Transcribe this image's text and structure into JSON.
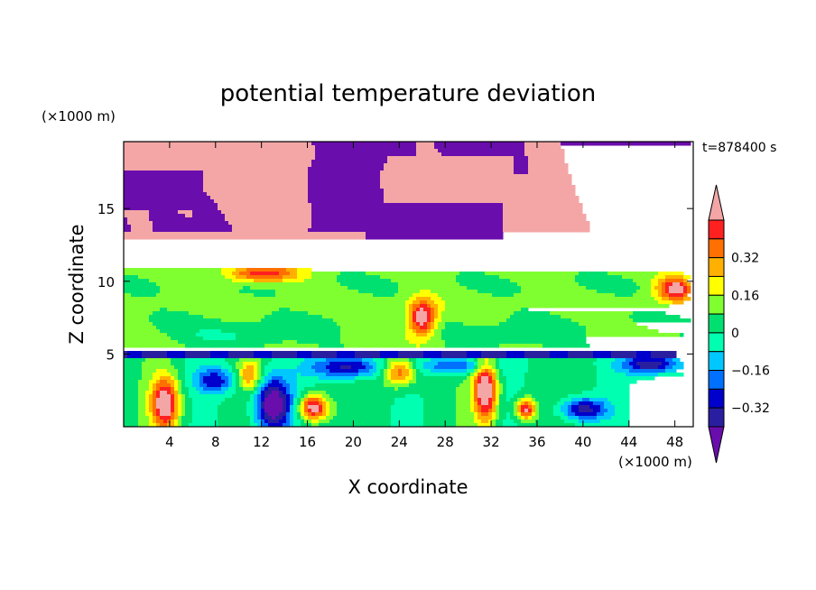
{
  "chart_data": {
    "type": "heatmap",
    "title": "potential temperature deviation",
    "time_label": "t=878400 s",
    "xlabel": "X coordinate",
    "ylabel": "Z coordinate",
    "x_units": "(×1000 m)",
    "y_units": "(×1000 m)",
    "xlim": [
      0,
      49.6
    ],
    "ylim": [
      0,
      19.6
    ],
    "x_ticks": [
      4,
      8,
      12,
      16,
      20,
      24,
      28,
      32,
      36,
      40,
      44,
      48
    ],
    "y_ticks": [
      5,
      10,
      15
    ],
    "colorbar": {
      "levels": [
        -0.48,
        -0.4,
        -0.32,
        -0.24,
        -0.16,
        -0.08,
        0,
        0.08,
        0.16,
        0.24,
        0.32,
        0.4,
        0.48
      ],
      "labels": [
        "0.32",
        "0.16",
        "0",
        "-0.16",
        "-0.32"
      ],
      "label_values": [
        0.32,
        0.16,
        0,
        -0.16,
        -0.32
      ],
      "colors": [
        "#6a0dad",
        "#2a1ea0",
        "#0000cc",
        "#0070ff",
        "#00c8ff",
        "#00ffb0",
        "#00e070",
        "#80ff30",
        "#ffff00",
        "#ffb000",
        "#ff7000",
        "#ff2020",
        "#f4a6a6"
      ],
      "extend": "both"
    }
  }
}
